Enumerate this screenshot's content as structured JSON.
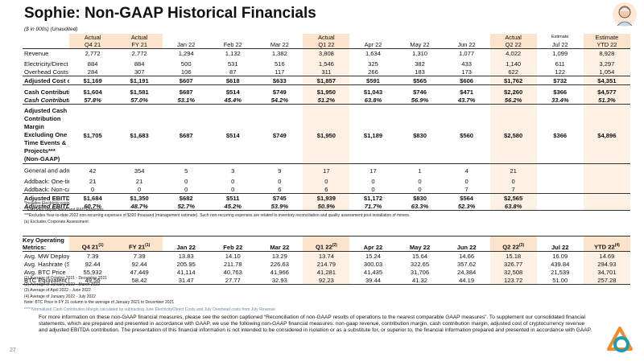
{
  "header": {
    "title": "Sophie: Non-GAAP Historical Financials",
    "subtitle": "($ in 000s) (Unaudited)"
  },
  "financials": {
    "columns": [
      {
        "top": "Actual",
        "label": "Q4 21"
      },
      {
        "top": "Actual",
        "label": "FY 21"
      },
      {
        "label": "Jan 22"
      },
      {
        "label": "Feb 22"
      },
      {
        "label": "Mar 22"
      },
      {
        "top": "Actual",
        "label": "Q1 22"
      },
      {
        "label": "Apr 22"
      },
      {
        "label": "May 22"
      },
      {
        "label": "Jun 22"
      },
      {
        "top": "Actual",
        "label": "Q2 22"
      },
      {
        "top": "Estimate",
        "label": "Jul 22"
      },
      {
        "top": "Estimate",
        "label": "YTD 22"
      }
    ],
    "rows": [
      {
        "label": "Revenue",
        "values": [
          "2,772",
          "2,772",
          "1,294",
          "1,132",
          "1,382",
          "3,808",
          "1,634",
          "1,310",
          "1,077",
          "4,022",
          "1,099",
          "8,928"
        ]
      },
      {
        "label": "Electricity/Direct Costs*",
        "values": [
          "884",
          "884",
          "500",
          "531",
          "516",
          "1,546",
          "325",
          "382",
          "433",
          "1,140",
          "611",
          "3,297"
        ],
        "gap": true
      },
      {
        "label": "Overhead Costs",
        "values": [
          "284",
          "307",
          "106",
          "87",
          "117",
          "311",
          "266",
          "183",
          "173",
          "622",
          "122",
          "1,054"
        ],
        "underline": true
      },
      {
        "label": "Adjusted Cost of Cryptocurrency Revenue 1**",
        "note": "(Non-GAAP)",
        "values": [
          "$1,169",
          "$1,191",
          "$607",
          "$618",
          "$633",
          "$1,857",
          "$591",
          "$565",
          "$606",
          "$1,762",
          "$732",
          "$4,351"
        ],
        "bold": true,
        "underline": true
      },
      {
        "label": "Cash Contribution Margin",
        "note": "(Non-GAAP)",
        "values": [
          "$1,604",
          "$1,581",
          "$687",
          "$514",
          "$749",
          "$1,950",
          "$1,043",
          "$746",
          "$471",
          "$2,260",
          "$366",
          "$4,577"
        ],
        "bold": true,
        "gap": true
      },
      {
        "label": "Cash Contribution %",
        "values": [
          "57.8%",
          "57.0%",
          "53.1%",
          "45.4%",
          "54.2%",
          "51.2%",
          "63.8%",
          "56.9%",
          "43.7%",
          "56.2%",
          "33.4%",
          "51.3%"
        ],
        "bold": true,
        "italic": true,
        "underline": true
      },
      {
        "label": "Adjusted Cash Contribution Margin Excluding One Time Events & Projects*** (Non-GAAP)",
        "values": [
          "$1,705",
          "$1,683",
          "$687",
          "$514",
          "$749",
          "$1,950",
          "$1,189",
          "$830",
          "$560",
          "$2,580",
          "$366",
          "$4,896"
        ],
        "bold": true,
        "gap": true,
        "underline": true,
        "tall": true
      },
      {
        "label": "General and administrative expenses",
        "sup": "(a)",
        "note": "(Non-GAAP)",
        "values": [
          "42",
          "354",
          "5",
          "3",
          "9",
          "17",
          "17",
          "1",
          "4",
          "21"
        ],
        "gap": true
      },
      {
        "label": "Addback: One-time expenses",
        "values": [
          "21",
          "21",
          "0",
          "0",
          "0",
          "0",
          "0",
          "0",
          "0",
          "0"
        ],
        "gap": true
      },
      {
        "label": "Addback: Non-cash stock compensation",
        "values": [
          "0",
          "0",
          "0",
          "0",
          "6",
          "6",
          "0",
          "0",
          "7",
          "7"
        ],
        "underline": true
      },
      {
        "label": "Adjusted EBITDA Contribution",
        "note": "(Non-GAAP)",
        "values": [
          "$1,684",
          "$1,350",
          "$682",
          "$511",
          "$745",
          "$1,939",
          "$1,172",
          "$830",
          "$564",
          "$2,565"
        ],
        "bold": true
      },
      {
        "label": "Adjusted EBITDA Contribution %",
        "values": [
          "60.7%",
          "48.7%",
          "52.7%",
          "45.2%",
          "53.9%",
          "50.9%",
          "71.7%",
          "63.3%",
          "52.3%",
          "63.8%"
        ],
        "bold": true,
        "italic": true,
        "underline": true
      }
    ],
    "notes": [
      "*Includes Electricity costs",
      "**Excludes Depreciation and R&D Expenses",
      "***Excludes Year-to-date 2022 non-recurring expenses of $320 thousand (management estimate). Such non-recurring expenses are related to inventory reconciliation and quality assessment post installation of miners.",
      "(a) Excludes Corporate Assessment"
    ]
  },
  "metrics": {
    "title": "Key Operating Metrics:",
    "columns": [
      {
        "label": "Q4 21",
        "sup": "(1)"
      },
      {
        "label": "FY 21",
        "sup": "(1)"
      },
      {
        "label": "Jan 22"
      },
      {
        "label": "Feb 22"
      },
      {
        "label": "Mar 22"
      },
      {
        "label": "Q1 22",
        "sup": "(2)"
      },
      {
        "label": "Apr 22"
      },
      {
        "label": "May 22"
      },
      {
        "label": "Jun 22"
      },
      {
        "label": "Q2 22",
        "sup": "(3)"
      },
      {
        "label": "Jul 22"
      },
      {
        "label": "YTD 22",
        "sup": "(4)"
      }
    ],
    "rows": [
      {
        "label": "Avg. MW Deployed",
        "values": [
          "7.39",
          "7.39",
          "13.83",
          "14.10",
          "13.29",
          "13.74",
          "15.24",
          "15.64",
          "14.66",
          "15.18",
          "16.09",
          "14.69"
        ]
      },
      {
        "label": "Avg. Hashrate (SHA-256, PH/s)",
        "values": [
          "92.44",
          "92.44",
          "205.95",
          "211.78",
          "226.63",
          "214.79",
          "300.03",
          "322.65",
          "357.62",
          "326.77",
          "439.84",
          "294.93"
        ]
      },
      {
        "label": "Avg. BTC Price",
        "values": [
          "55,932",
          "47,449",
          "41,114",
          "40,763",
          "41,966",
          "41,281",
          "41,435",
          "31,706",
          "24,384",
          "32,508",
          "21,539",
          "34,701"
        ]
      },
      {
        "label": "BTC Equivalent Mined",
        "values": [
          "49.56",
          "58.42",
          "31.47",
          "27.77",
          "32.93",
          "92.23",
          "39.44",
          "41.32",
          "44.19",
          "123.72",
          "51.00",
          "257.28"
        ],
        "underline": true
      }
    ],
    "notes": [
      "(1) Average of October 2021 - December 2021",
      "(2) Average of January 2022 - March 2022",
      "(3) Average of April 2022 - June 2022",
      "(4) Average of January 2022 - July 2022",
      "Note: BTC Price in FY 21 column is the average of January 2021 to December 2021"
    ],
    "footnote": "**** Normalized Cash Contribution Margin calculated by subtracting June Electricity/Direct Costs and July Overhead costs from July Revenue"
  },
  "footer": {
    "page": "27",
    "disclaimer": "For more information on these non-GAAP financial measures, please see the section captioned “Reconciliation of non-GAAP results of operations to the nearest comparable GAAP measures”. To supplement our consolidated financial statements, which are prepared and presented in accordance with GAAP, we use the following non-GAAP financial measures: non-gaap revenue, contribution margin, cash contribution margin, adjusted cost of cryptocurrency revenue and adjusted EBITDA contribution. The presentation of this financial information is not intended to be considered in isolation or as a substitute for, or superior to, the financial information prepared and presented in accordance with GAAP."
  }
}
